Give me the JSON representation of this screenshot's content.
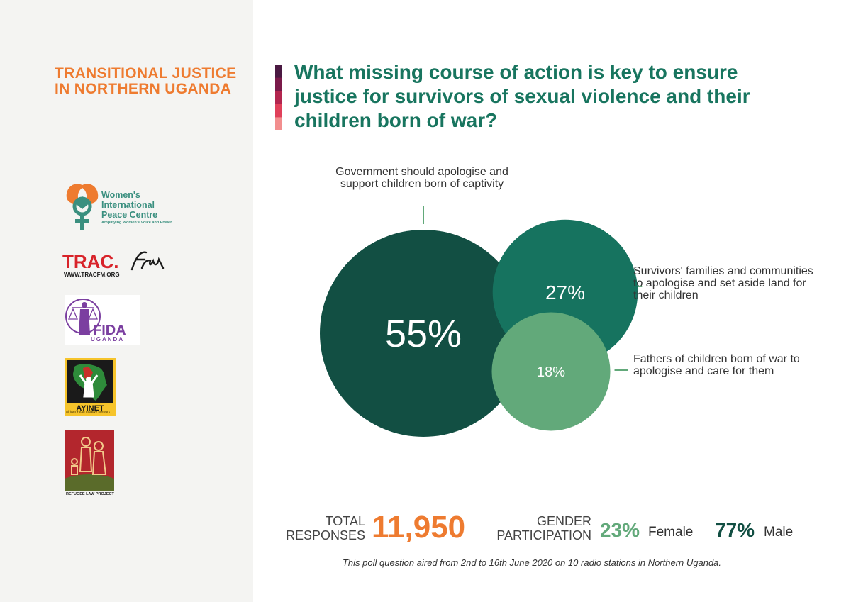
{
  "sidebar": {
    "title": "TRANSITIONAL JUSTICE IN NORTHERN UGANDA",
    "logos": {
      "wipc": {
        "name": "Women's International Peace Centre",
        "tagline": "Amplifying Women's Voice and Power",
        "icon": "wipc-logo-icon"
      },
      "trac": {
        "name": "TRAC.fm",
        "url": "WWW.TRACFM.ORG",
        "icon": "tracfm-logo-icon"
      },
      "fida": {
        "name": "FIDA",
        "sub": "UGANDA",
        "icon": "fida-logo-icon"
      },
      "ayinet": {
        "name": "AYINET",
        "tagline": "African Youth Initiative Network",
        "icon": "ayinet-logo-icon"
      },
      "rlp": {
        "name": "REFUGEE LAW PROJECT",
        "icon": "rlp-logo-icon"
      }
    }
  },
  "question": "What missing course of action is key to ensure justice for survivors of sexual violence and their children born of war?",
  "accent_colors": [
    "#4a1942",
    "#7a1a4a",
    "#b3264f",
    "#e0405a",
    "#f28e8e"
  ],
  "chart_data": {
    "type": "bubble",
    "unit": "%",
    "categories": [
      "Government should apologise and support children born of captivity",
      "Survivors' families and communities to apologise and set aside land for their children",
      "Fathers of children born of war to apologise and care for them"
    ],
    "values": [
      55,
      27,
      18
    ],
    "colors": [
      "#124f43",
      "#16735f",
      "#62a97a"
    ]
  },
  "summary": {
    "total_label": "TOTAL RESPONSES",
    "total_value": "11,950",
    "gender_label": "GENDER PARTICIPATION",
    "female_pct": "23%",
    "female_label": "Female",
    "male_pct": "77%",
    "male_label": "Male"
  },
  "footnote": "This poll question aired from 2nd to 16th June 2020 on 10 radio stations in Northern Uganda.",
  "colors": {
    "orange": "#ee7b30",
    "teal": "#18755f",
    "sidebar_bg": "#f4f4f2"
  }
}
